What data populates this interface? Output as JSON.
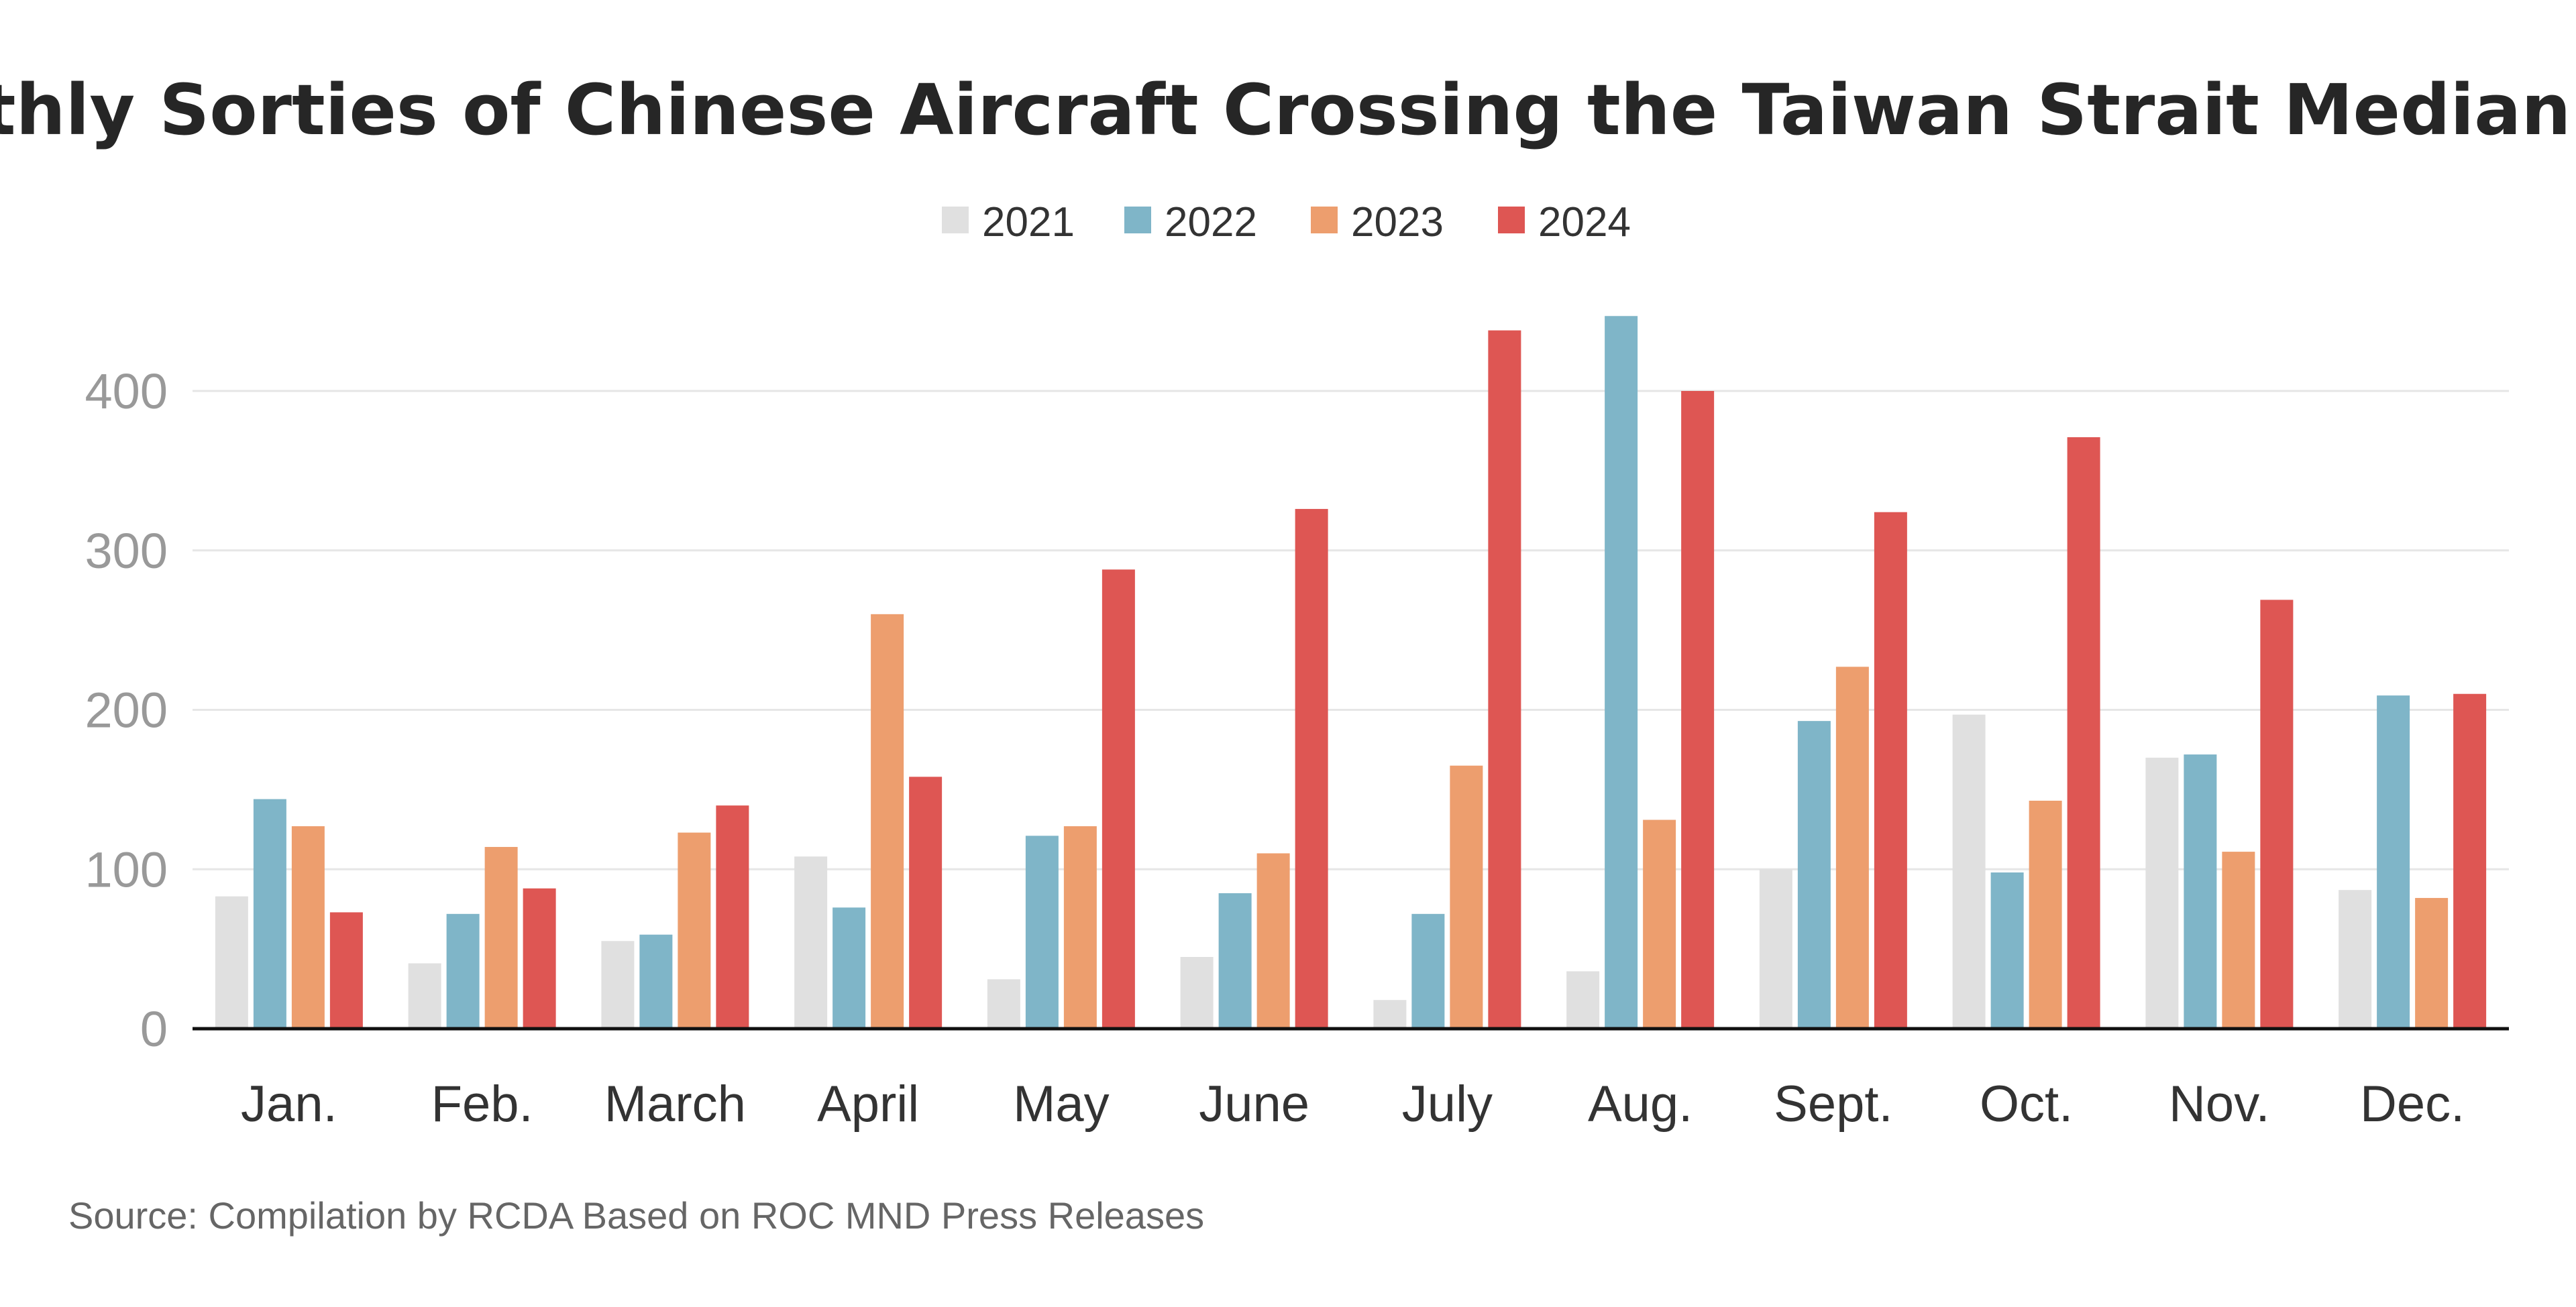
{
  "chart_data": {
    "type": "bar",
    "title": "Monthly Sorties of Chinese Aircraft Crossing the Taiwan Strait Median Line",
    "source": "Source: Compilation by RCDA Based on ROC MND Press Releases",
    "categories": [
      "Jan.",
      "Feb.",
      "March",
      "April",
      "May",
      "June",
      "July",
      "Aug.",
      "Sept.",
      "Oct.",
      "Nov.",
      "Dec."
    ],
    "series": [
      {
        "name": "2021",
        "color": "#e0e0e0",
        "values": [
          83,
          41,
          55,
          108,
          31,
          45,
          18,
          36,
          100,
          197,
          170,
          87
        ]
      },
      {
        "name": "2022",
        "color": "#7fb5c8",
        "values": [
          144,
          72,
          59,
          76,
          121,
          85,
          72,
          447,
          193,
          98,
          172,
          209
        ]
      },
      {
        "name": "2023",
        "color": "#ed9e6e",
        "values": [
          127,
          114,
          123,
          260,
          127,
          110,
          165,
          131,
          227,
          143,
          111,
          82
        ]
      },
      {
        "name": "2024",
        "color": "#de5653",
        "values": [
          73,
          88,
          140,
          158,
          288,
          326,
          438,
          400,
          324,
          371,
          269,
          210
        ]
      }
    ],
    "xlabel": "",
    "ylabel": "",
    "ylim": [
      0,
      450
    ],
    "yticks": [
      "0",
      "100",
      "200",
      "300",
      "400"
    ],
    "grid": true,
    "legend_position": "top-center"
  }
}
